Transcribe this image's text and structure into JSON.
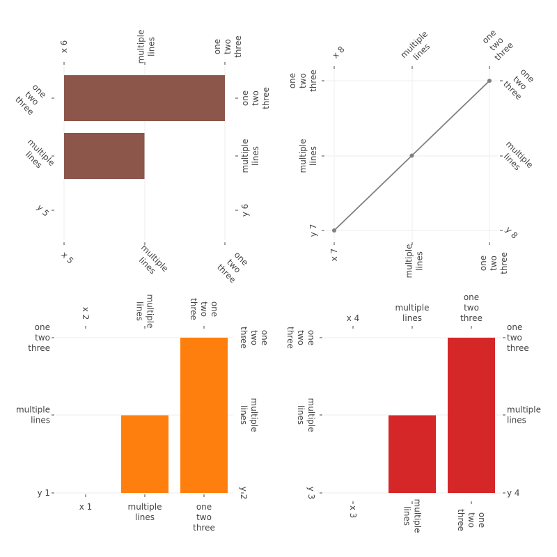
{
  "chart_data": [
    {
      "id": "chart-1",
      "type": "bar",
      "orientation": "vertical",
      "color": "#ff7f0e",
      "categories": [
        "x 1",
        "multiple\nlines",
        "one\ntwo\nthree"
      ],
      "values": [
        0,
        1,
        2
      ],
      "y_tick_labels": [
        "y 1",
        "multiple\nlines",
        "one\ntwo\nthree"
      ],
      "x2_tick_labels": [
        "x 2",
        "multiple\nlines",
        "one\ntwo\nthree"
      ],
      "y2_tick_labels": [
        "y 2",
        "multiple\nlines",
        "one\ntwo\nthree"
      ],
      "ylim": [
        0,
        2
      ],
      "grid": true
    },
    {
      "id": "chart-2",
      "type": "bar",
      "orientation": "vertical",
      "color": "#d62728",
      "categories": [
        "x 3",
        "multiple\nlines",
        "one\ntwo\nthree"
      ],
      "values": [
        0,
        1,
        2
      ],
      "y_tick_labels": [
        "y 3",
        "multiple\nlines",
        "one\ntwo\nthree"
      ],
      "x2_tick_labels": [
        "x 4",
        "multiple\nlines",
        "one\ntwo\nthree"
      ],
      "y2_tick_labels": [
        "y 4",
        "multiple\nlines",
        "one\ntwo\nthree"
      ],
      "ylim": [
        0,
        2
      ],
      "grid": true
    },
    {
      "id": "chart-3",
      "type": "bar",
      "orientation": "horizontal",
      "color": "#8c564b",
      "categories": [
        "y 5",
        "multiple\nlines",
        "one\ntwo\nthree"
      ],
      "values": [
        0,
        1,
        2
      ],
      "x_tick_labels": [
        "x 5",
        "multiple\nlines",
        "one\ntwo\nthree"
      ],
      "x2_tick_labels": [
        "x 6",
        "multiple\nlines",
        "one\ntwo\nthree"
      ],
      "y2_tick_labels": [
        "y 6",
        "multiple\nlines",
        "one\ntwo\nthree"
      ],
      "xlim": [
        0,
        2
      ],
      "grid": true
    },
    {
      "id": "chart-4",
      "type": "line",
      "color": "#7f7f7f",
      "x": [
        0,
        1,
        2
      ],
      "y": [
        0,
        1,
        2
      ],
      "x_tick_labels": [
        "x 7",
        "multiple\nlines",
        "one\ntwo\nthree"
      ],
      "y_tick_labels": [
        "y 7",
        "multiple\nlines",
        "one\ntwo\nthree"
      ],
      "x2_tick_labels": [
        "x 8",
        "multiple\nlines",
        "one\ntwo\nthree"
      ],
      "y2_tick_labels": [
        "y 8",
        "multiple\nlines",
        "one\ntwo\nthree"
      ],
      "xlim": [
        0,
        2
      ],
      "ylim": [
        0,
        2
      ],
      "grid": true
    }
  ]
}
